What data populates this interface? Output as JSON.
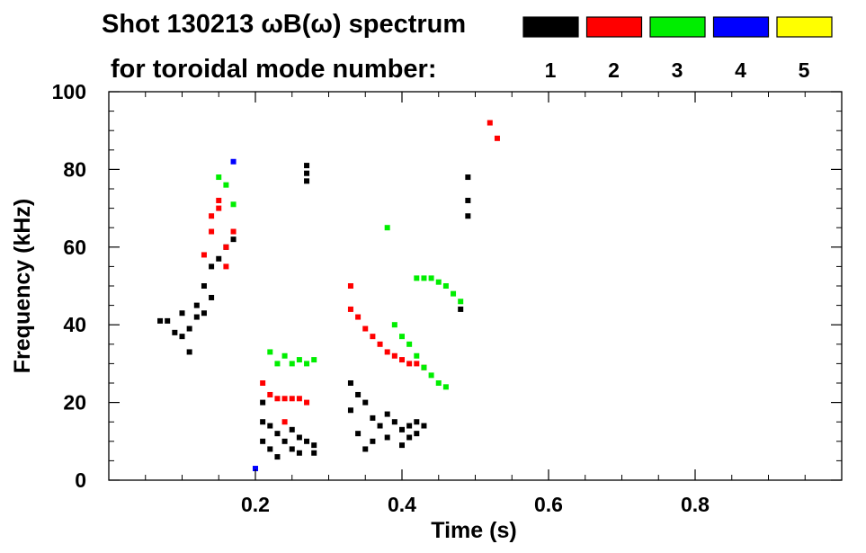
{
  "chart_data": {
    "type": "heatmap",
    "title_line1": "Shot 130213 ωB(ω) spectrum",
    "title_line2": "for toroidal mode number:",
    "xlabel": "Time (s)",
    "ylabel": "Frequency (kHz)",
    "xlim": [
      0.0,
      1.0
    ],
    "ylim": [
      0,
      100
    ],
    "x_ticks": [
      "0.2",
      "0.4",
      "0.6",
      "0.8"
    ],
    "x_tick_values": [
      0.2,
      0.4,
      0.6,
      0.8
    ],
    "y_ticks": [
      "0",
      "20",
      "40",
      "60",
      "80",
      "100"
    ],
    "y_tick_values": [
      0,
      20,
      40,
      60,
      80,
      100
    ],
    "legend": [
      {
        "mode": "1",
        "color": "#000000"
      },
      {
        "mode": "2",
        "color": "#ff0000"
      },
      {
        "mode": "3",
        "color": "#00ee00"
      },
      {
        "mode": "4",
        "color": "#0000ff"
      },
      {
        "mode": "5",
        "color": "#ffff00"
      }
    ],
    "series": [
      {
        "name": "1",
        "color": "#000000",
        "points": [
          [
            0.07,
            41
          ],
          [
            0.08,
            41
          ],
          [
            0.09,
            38
          ],
          [
            0.1,
            37
          ],
          [
            0.11,
            39
          ],
          [
            0.12,
            45
          ],
          [
            0.13,
            50
          ],
          [
            0.14,
            55
          ],
          [
            0.15,
            57
          ],
          [
            0.1,
            43
          ],
          [
            0.11,
            33
          ],
          [
            0.12,
            42
          ],
          [
            0.13,
            43
          ],
          [
            0.14,
            47
          ],
          [
            0.16,
            60
          ],
          [
            0.17,
            62
          ],
          [
            0.21,
            20
          ],
          [
            0.21,
            15
          ],
          [
            0.21,
            10
          ],
          [
            0.22,
            14
          ],
          [
            0.22,
            8
          ],
          [
            0.23,
            12
          ],
          [
            0.23,
            6
          ],
          [
            0.24,
            10
          ],
          [
            0.25,
            13
          ],
          [
            0.25,
            8
          ],
          [
            0.26,
            11
          ],
          [
            0.26,
            7
          ],
          [
            0.27,
            10
          ],
          [
            0.28,
            9
          ],
          [
            0.28,
            7
          ],
          [
            0.27,
            79
          ],
          [
            0.27,
            81
          ],
          [
            0.27,
            77
          ],
          [
            0.33,
            25
          ],
          [
            0.33,
            18
          ],
          [
            0.34,
            22
          ],
          [
            0.34,
            12
          ],
          [
            0.35,
            20
          ],
          [
            0.35,
            8
          ],
          [
            0.36,
            16
          ],
          [
            0.36,
            10
          ],
          [
            0.37,
            14
          ],
          [
            0.38,
            17
          ],
          [
            0.38,
            11
          ],
          [
            0.39,
            15
          ],
          [
            0.4,
            13
          ],
          [
            0.4,
            9
          ],
          [
            0.41,
            14
          ],
          [
            0.41,
            11
          ],
          [
            0.42,
            15
          ],
          [
            0.42,
            12
          ],
          [
            0.43,
            14
          ],
          [
            0.49,
            78
          ],
          [
            0.49,
            72
          ],
          [
            0.49,
            68
          ],
          [
            0.48,
            44
          ]
        ]
      },
      {
        "name": "2",
        "color": "#ff0000",
        "points": [
          [
            0.13,
            58
          ],
          [
            0.14,
            64
          ],
          [
            0.14,
            68
          ],
          [
            0.15,
            72
          ],
          [
            0.15,
            70
          ],
          [
            0.16,
            60
          ],
          [
            0.16,
            55
          ],
          [
            0.17,
            64
          ],
          [
            0.21,
            25
          ],
          [
            0.22,
            22
          ],
          [
            0.23,
            21
          ],
          [
            0.24,
            21
          ],
          [
            0.25,
            21
          ],
          [
            0.26,
            21
          ],
          [
            0.27,
            20
          ],
          [
            0.33,
            50
          ],
          [
            0.33,
            44
          ],
          [
            0.34,
            42
          ],
          [
            0.35,
            39
          ],
          [
            0.36,
            37
          ],
          [
            0.37,
            35
          ],
          [
            0.38,
            33
          ],
          [
            0.39,
            32
          ],
          [
            0.4,
            31
          ],
          [
            0.41,
            30
          ],
          [
            0.42,
            30
          ],
          [
            0.43,
            29
          ],
          [
            0.52,
            92
          ],
          [
            0.53,
            88
          ],
          [
            0.24,
            15
          ]
        ]
      },
      {
        "name": "3",
        "color": "#00ee00",
        "points": [
          [
            0.15,
            78
          ],
          [
            0.16,
            76
          ],
          [
            0.17,
            71
          ],
          [
            0.22,
            33
          ],
          [
            0.23,
            30
          ],
          [
            0.24,
            32
          ],
          [
            0.25,
            30
          ],
          [
            0.26,
            31
          ],
          [
            0.27,
            30
          ],
          [
            0.28,
            31
          ],
          [
            0.38,
            65
          ],
          [
            0.39,
            40
          ],
          [
            0.4,
            37
          ],
          [
            0.41,
            35
          ],
          [
            0.42,
            32
          ],
          [
            0.43,
            29
          ],
          [
            0.44,
            27
          ],
          [
            0.45,
            25
          ],
          [
            0.46,
            24
          ],
          [
            0.42,
            52
          ],
          [
            0.43,
            52
          ],
          [
            0.44,
            52
          ],
          [
            0.45,
            51
          ],
          [
            0.46,
            50
          ],
          [
            0.47,
            48
          ],
          [
            0.48,
            46
          ]
        ]
      },
      {
        "name": "4",
        "color": "#0000ff",
        "points": [
          [
            0.17,
            82
          ],
          [
            0.2,
            3
          ]
        ]
      }
    ]
  }
}
